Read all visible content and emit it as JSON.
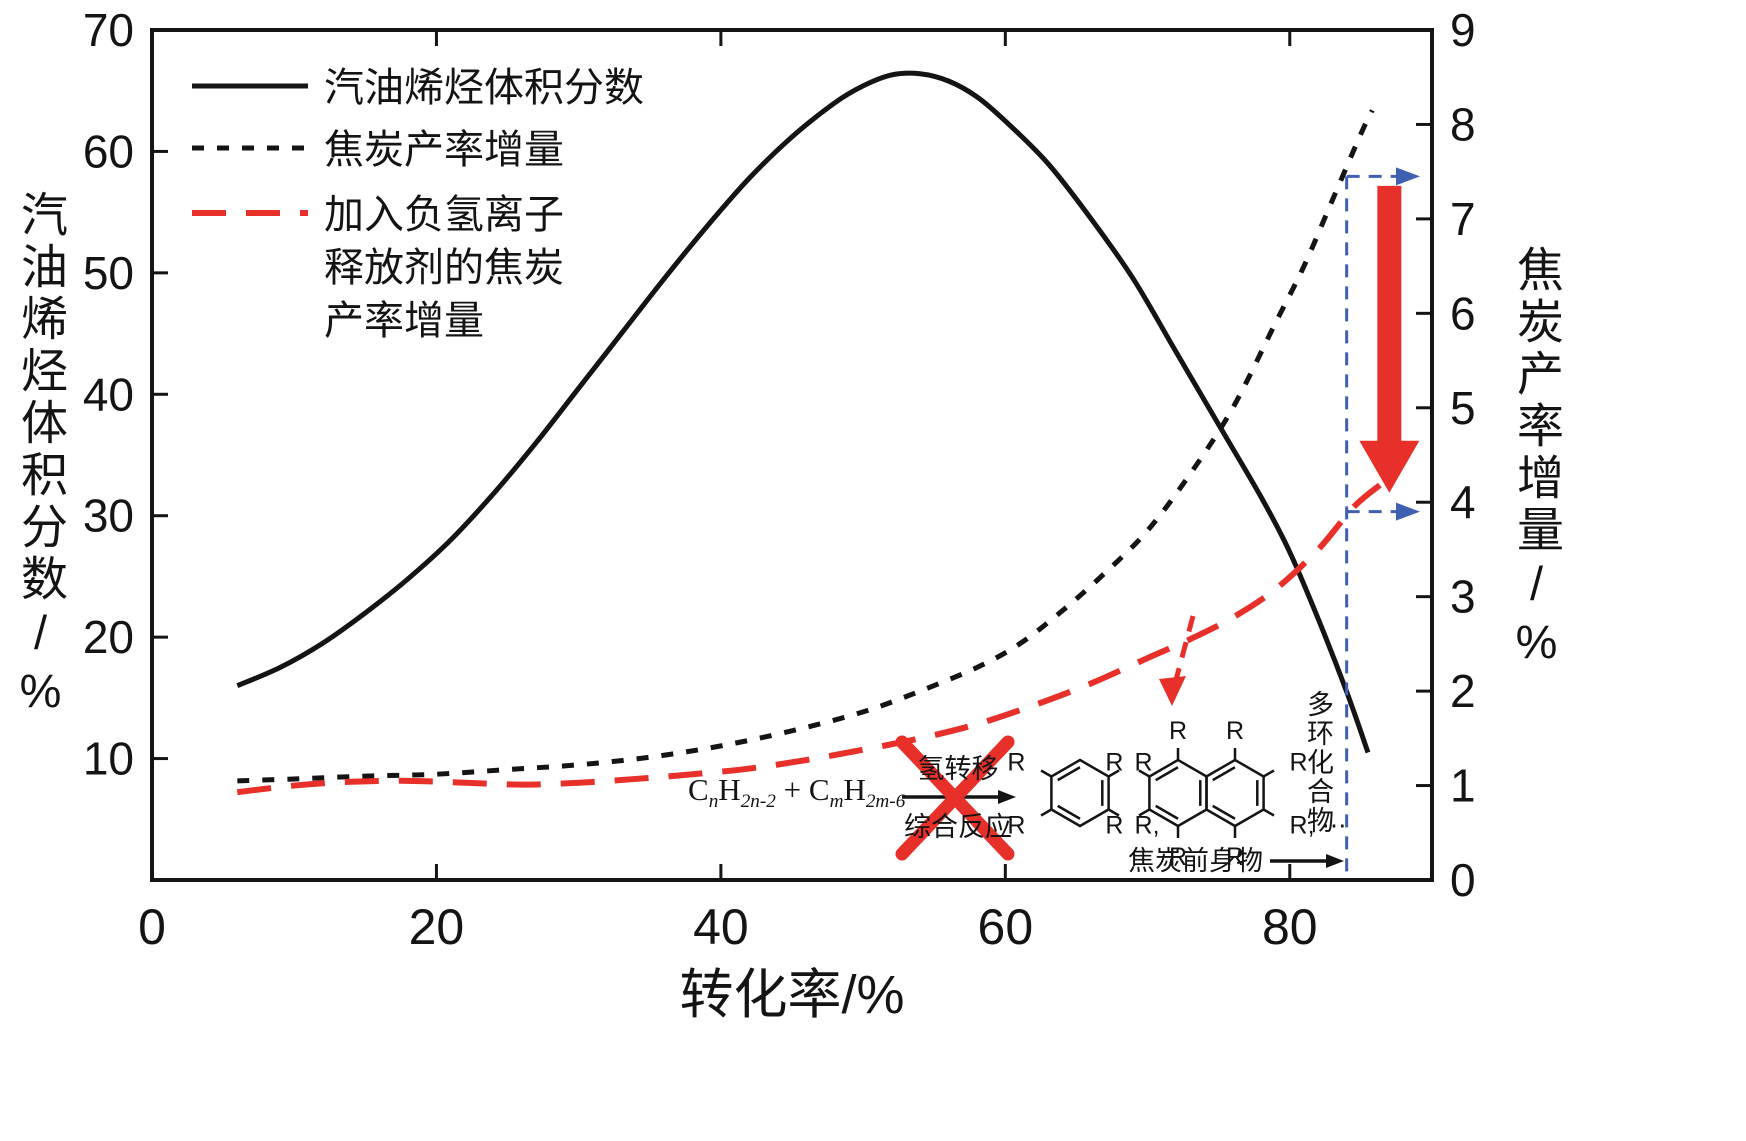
{
  "chart_data": {
    "type": "line",
    "title": "",
    "x_axis": {
      "label": "转化率/%",
      "range": [
        0,
        90
      ],
      "ticks": [
        0,
        20,
        40,
        60,
        80
      ]
    },
    "y_axis_left": {
      "label": "汽油烯烃体积分数/%",
      "range": [
        0,
        70
      ],
      "ticks": [
        10,
        20,
        30,
        40,
        50,
        60,
        70
      ]
    },
    "y_axis_right": {
      "label": "焦炭产率增量/%",
      "range": [
        0,
        9
      ],
      "ticks": [
        0,
        1,
        2,
        3,
        4,
        5,
        6,
        7,
        8,
        9
      ]
    },
    "grid": false,
    "series": [
      {
        "name": "汽油烯烃体积分数",
        "axis": "left",
        "style": "solid",
        "color": "#141414",
        "points": [
          [
            6,
            16
          ],
          [
            9,
            17.5
          ],
          [
            12,
            19.5
          ],
          [
            15,
            22
          ],
          [
            18,
            24.8
          ],
          [
            21,
            28
          ],
          [
            24,
            31.8
          ],
          [
            27,
            36
          ],
          [
            30,
            40.5
          ],
          [
            33,
            45
          ],
          [
            36,
            49.5
          ],
          [
            39,
            53.8
          ],
          [
            42,
            57.8
          ],
          [
            45,
            61.2
          ],
          [
            48,
            64
          ],
          [
            50,
            65.4
          ],
          [
            52,
            66.3
          ],
          [
            54,
            66.4
          ],
          [
            56,
            65.8
          ],
          [
            58,
            64.5
          ],
          [
            60,
            62.5
          ],
          [
            63,
            59
          ],
          [
            66,
            54.5
          ],
          [
            69,
            49.5
          ],
          [
            72,
            43.5
          ],
          [
            75,
            37.5
          ],
          [
            78,
            31.5
          ],
          [
            80,
            27
          ],
          [
            82,
            21.5
          ],
          [
            84,
            15.5
          ],
          [
            85.5,
            10.5
          ]
        ]
      },
      {
        "name": "焦炭产率增量",
        "axis": "right",
        "style": "short-dash",
        "color": "#141414",
        "points": [
          [
            6,
            1.05
          ],
          [
            10,
            1.07
          ],
          [
            15,
            1.1
          ],
          [
            20,
            1.12
          ],
          [
            25,
            1.17
          ],
          [
            30,
            1.22
          ],
          [
            35,
            1.3
          ],
          [
            40,
            1.42
          ],
          [
            45,
            1.58
          ],
          [
            50,
            1.78
          ],
          [
            54,
            2.0
          ],
          [
            58,
            2.25
          ],
          [
            61,
            2.5
          ],
          [
            64,
            2.85
          ],
          [
            67,
            3.25
          ],
          [
            70,
            3.7
          ],
          [
            73,
            4.3
          ],
          [
            76,
            5.0
          ],
          [
            79,
            5.9
          ],
          [
            81,
            6.5
          ],
          [
            83,
            7.2
          ],
          [
            85,
            7.9
          ],
          [
            85.8,
            8.15
          ]
        ]
      },
      {
        "name": "加入负氢离子释放剂的焦炭产率增量",
        "axis": "right",
        "style": "long-dash",
        "color": "#e8302a",
        "points": [
          [
            6,
            0.93
          ],
          [
            10,
            1.0
          ],
          [
            14,
            1.04
          ],
          [
            18,
            1.05
          ],
          [
            22,
            1.03
          ],
          [
            26,
            1.01
          ],
          [
            30,
            1.03
          ],
          [
            34,
            1.07
          ],
          [
            38,
            1.12
          ],
          [
            42,
            1.18
          ],
          [
            46,
            1.27
          ],
          [
            50,
            1.38
          ],
          [
            54,
            1.5
          ],
          [
            58,
            1.65
          ],
          [
            62,
            1.85
          ],
          [
            66,
            2.08
          ],
          [
            70,
            2.35
          ],
          [
            73,
            2.55
          ],
          [
            76,
            2.78
          ],
          [
            79,
            3.08
          ],
          [
            82,
            3.5
          ],
          [
            84.5,
            3.95
          ],
          [
            86.5,
            4.2
          ]
        ]
      }
    ],
    "legend": {
      "position": "top-left",
      "items": [
        {
          "lines": [
            "汽油烯烃体积分数"
          ]
        },
        {
          "lines": [
            "焦炭产率增量"
          ]
        },
        {
          "lines": [
            "加入负氢离子",
            "释放剂的焦炭",
            "产率增量"
          ]
        }
      ]
    },
    "annotations": {
      "blue_bracket": {
        "x": 84,
        "top_value": 7.45,
        "bottom_value": 3.9,
        "color": "#3f5fb0"
      },
      "reduction_arrow": {
        "x": 87,
        "from_value": 7.35,
        "to_value": 4.1,
        "color": "#e8302a"
      },
      "cross_out_color": "#e8302a",
      "formula": {
        "c1": "C",
        "s1": "n",
        "c2": "H",
        "s2": "2n-2",
        "c3": " + C",
        "s3": "m",
        "c4": "H",
        "s4": "2m-6"
      },
      "arrow_top_label": "氢转移",
      "arrow_bottom_label": "综合反应",
      "molecule_r_label": "R",
      "molecule_suffix_1": "R,",
      "molecule_suffix_2": "R, ⋯",
      "polycyclic_label": "多环化合物",
      "coke_precursor_label": "焦炭前身物"
    }
  },
  "colors": {
    "ink": "#141414",
    "red": "#e8302a",
    "blue": "#3f5fb0",
    "background": "#ffffff"
  }
}
